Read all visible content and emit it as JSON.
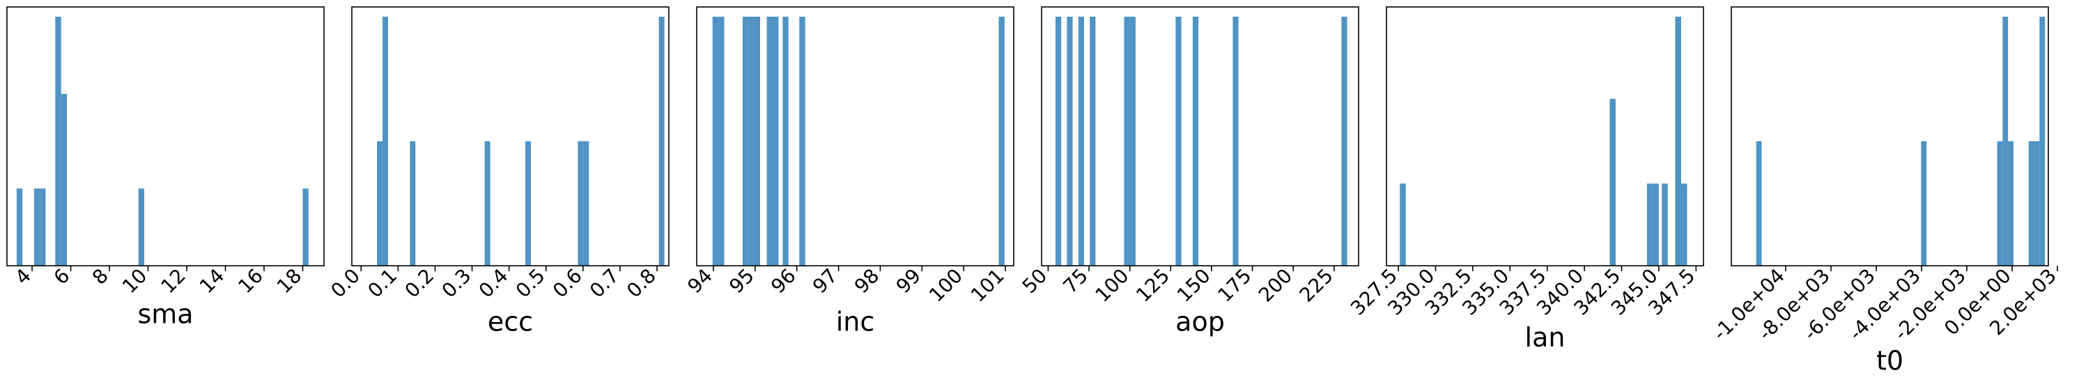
{
  "colors": {
    "bar": "#4f94c4",
    "frame": "#000000",
    "background": "#ffffff"
  },
  "chart_data": [
    {
      "type": "bar",
      "xlabel": "sma",
      "xlim": [
        2.7,
        19.1
      ],
      "ylim": [
        0,
        1
      ],
      "grid": false,
      "xticks": [
        4,
        6,
        8,
        10,
        12,
        14,
        16,
        18
      ],
      "tick_labels": [
        "4",
        "6",
        "8",
        "10",
        "12",
        "14",
        "16",
        "18"
      ],
      "bins": [
        {
          "x0": 3.2,
          "x1": 3.5,
          "value": 0.31
        },
        {
          "x0": 4.1,
          "x1": 4.4,
          "value": 0.31
        },
        {
          "x0": 4.4,
          "x1": 4.7,
          "value": 0.31
        },
        {
          "x0": 5.2,
          "x1": 5.5,
          "value": 1.0
        },
        {
          "x0": 5.5,
          "x1": 5.8,
          "value": 0.69
        },
        {
          "x0": 9.5,
          "x1": 9.8,
          "value": 0.31
        },
        {
          "x0": 18.0,
          "x1": 18.3,
          "value": 0.31
        }
      ]
    },
    {
      "type": "bar",
      "xlabel": "ecc",
      "xlim": [
        -0.025,
        0.832
      ],
      "ylim": [
        0,
        1
      ],
      "grid": false,
      "xticks": [
        0.0,
        0.1,
        0.2,
        0.3,
        0.4,
        0.5,
        0.6,
        0.7,
        0.8
      ],
      "tick_labels": [
        "0.0",
        "0.1",
        "0.2",
        "0.3",
        "0.4",
        "0.5",
        "0.6",
        "0.7",
        "0.8"
      ],
      "bins": [
        {
          "x0": 0.043,
          "x1": 0.058,
          "value": 0.5
        },
        {
          "x0": 0.058,
          "x1": 0.073,
          "value": 1.0
        },
        {
          "x0": 0.132,
          "x1": 0.147,
          "value": 0.5
        },
        {
          "x0": 0.334,
          "x1": 0.349,
          "value": 0.5
        },
        {
          "x0": 0.444,
          "x1": 0.459,
          "value": 0.5
        },
        {
          "x0": 0.586,
          "x1": 0.601,
          "value": 0.5
        },
        {
          "x0": 0.601,
          "x1": 0.616,
          "value": 0.5
        },
        {
          "x0": 0.805,
          "x1": 0.82,
          "value": 1.0
        }
      ]
    },
    {
      "type": "bar",
      "xlabel": "inc",
      "xlim": [
        93.6,
        101.2
      ],
      "ylim": [
        0,
        1
      ],
      "grid": false,
      "xticks": [
        94,
        95,
        96,
        97,
        98,
        99,
        100,
        101
      ],
      "tick_labels": [
        "94",
        "95",
        "96",
        "97",
        "98",
        "99",
        "100",
        "101"
      ],
      "bins": [
        {
          "x0": 93.98,
          "x1": 94.12,
          "value": 1.0
        },
        {
          "x0": 94.12,
          "x1": 94.26,
          "value": 1.0
        },
        {
          "x0": 94.7,
          "x1": 94.84,
          "value": 1.0
        },
        {
          "x0": 94.84,
          "x1": 94.98,
          "value": 1.0
        },
        {
          "x0": 94.98,
          "x1": 95.12,
          "value": 1.0
        },
        {
          "x0": 95.28,
          "x1": 95.42,
          "value": 1.0
        },
        {
          "x0": 95.42,
          "x1": 95.56,
          "value": 1.0
        },
        {
          "x0": 95.66,
          "x1": 95.8,
          "value": 1.0
        },
        {
          "x0": 96.06,
          "x1": 96.2,
          "value": 1.0
        },
        {
          "x0": 100.84,
          "x1": 100.98,
          "value": 1.0
        }
      ]
    },
    {
      "type": "bar",
      "xlabel": "aop",
      "xlim": [
        46,
        240
      ],
      "ylim": [
        0,
        1
      ],
      "grid": false,
      "xticks": [
        50,
        75,
        100,
        125,
        150,
        175,
        200,
        225
      ],
      "tick_labels": [
        "50",
        "75",
        "100",
        "125",
        "150",
        "175",
        "200",
        "225"
      ],
      "bins": [
        {
          "x0": 54.5,
          "x1": 58.0,
          "value": 1.0
        },
        {
          "x0": 61.5,
          "x1": 65.0,
          "value": 1.0
        },
        {
          "x0": 68.5,
          "x1": 72.0,
          "value": 1.0
        },
        {
          "x0": 75.5,
          "x1": 79.0,
          "value": 1.0
        },
        {
          "x0": 96.5,
          "x1": 100.0,
          "value": 1.0
        },
        {
          "x0": 100.0,
          "x1": 103.5,
          "value": 1.0
        },
        {
          "x0": 128.0,
          "x1": 131.5,
          "value": 1.0
        },
        {
          "x0": 138.5,
          "x1": 142.0,
          "value": 1.0
        },
        {
          "x0": 163.0,
          "x1": 166.5,
          "value": 1.0
        },
        {
          "x0": 229.5,
          "x1": 233.0,
          "value": 1.0
        }
      ]
    },
    {
      "type": "bar",
      "xlabel": "lan",
      "xlim": [
        326.7,
        348.0
      ],
      "ylim": [
        0,
        1
      ],
      "grid": false,
      "xticks": [
        327.5,
        330.0,
        332.5,
        335.0,
        337.5,
        340.0,
        342.5,
        345.0,
        347.5
      ],
      "tick_labels": [
        "327.5",
        "330.0",
        "332.5",
        "335.0",
        "337.5",
        "340.0",
        "342.5",
        "345.0",
        "347.5"
      ],
      "bins": [
        {
          "x0": 327.6,
          "x1": 328.0,
          "value": 0.33
        },
        {
          "x0": 341.7,
          "x1": 342.1,
          "value": 0.67
        },
        {
          "x0": 344.2,
          "x1": 344.6,
          "value": 0.33
        },
        {
          "x0": 344.6,
          "x1": 345.0,
          "value": 0.33
        },
        {
          "x0": 345.2,
          "x1": 345.6,
          "value": 0.33
        },
        {
          "x0": 346.1,
          "x1": 346.5,
          "value": 1.0
        },
        {
          "x0": 346.5,
          "x1": 346.9,
          "value": 0.33
        }
      ]
    },
    {
      "type": "bar",
      "xlabel": "t0",
      "xlim": [
        -12400,
        1600
      ],
      "ylim": [
        0,
        1
      ],
      "grid": false,
      "xticks": [
        -10000,
        -8000,
        -6000,
        -4000,
        -2000,
        0,
        2000
      ],
      "tick_labels": [
        "-1.0e+04",
        "-8.0e+03",
        "-6.0e+03",
        "-4.0e+03",
        "-2.0e+03",
        "0.0e+00",
        "2.0e+03"
      ],
      "bins": [
        {
          "x0": -11300,
          "x1": -11060,
          "value": 0.5
        },
        {
          "x0": -4020,
          "x1": -3780,
          "value": 0.5
        },
        {
          "x0": -660,
          "x1": -420,
          "value": 0.5
        },
        {
          "x0": -420,
          "x1": -180,
          "value": 1.0
        },
        {
          "x0": -180,
          "x1": 60,
          "value": 0.5
        },
        {
          "x0": 730,
          "x1": 970,
          "value": 0.5
        },
        {
          "x0": 970,
          "x1": 1210,
          "value": 0.5
        },
        {
          "x0": 1210,
          "x1": 1450,
          "value": 1.0
        }
      ]
    }
  ]
}
